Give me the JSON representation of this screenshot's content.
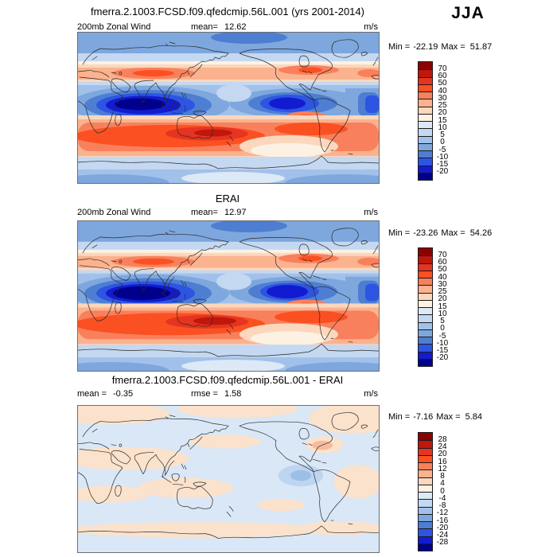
{
  "season": "JJA",
  "palette": [
    "#8b0000",
    "#c0170c",
    "#e63420",
    "#fb5022",
    "#f9805c",
    "#fbb28e",
    "#fbd7bd",
    "#fdf1e4",
    "#dde9f6",
    "#c4d8f1",
    "#a2c1ea",
    "#7ea7de",
    "#4e7ed2",
    "#2d55e2",
    "#131bd0",
    "#00008b"
  ],
  "panels": [
    {
      "title": "fmerra.2.1003.FCSD.f09.qfedcmip.56L.001 (yrs 2001-2014)",
      "sub_left": "200mb Zonal Wind",
      "stat_label": "mean=",
      "stat_value": "12.62",
      "units": "m/s",
      "min_label": "Min =",
      "min": "-22.19",
      "max_label": "Max =",
      "max": "51.87",
      "levels": [
        "70",
        "60",
        "50",
        "40",
        "30",
        "25",
        "20",
        "15",
        "10",
        "5",
        "0",
        "-5",
        "-10",
        "-15",
        "-20"
      ]
    },
    {
      "title": "ERAI",
      "sub_left": "200mb Zonal Wind",
      "stat_label": "mean=",
      "stat_value": "12.97",
      "units": "m/s",
      "min_label": "Min =",
      "min": "-23.26",
      "max_label": "Max =",
      "max": "54.26",
      "levels": [
        "70",
        "60",
        "50",
        "40",
        "30",
        "25",
        "20",
        "15",
        "10",
        "5",
        "0",
        "-5",
        "-10",
        "-15",
        "-20"
      ]
    },
    {
      "title": "fmerra.2.1003.FCSD.f09.qfedcmip.56L.001 - ERAI",
      "sub_left_label": "mean =",
      "sub_left_value": "-0.35",
      "stat_label": "rmse =",
      "stat_value": "1.58",
      "units": "m/s",
      "min_label": "Min =",
      "min": "-7.16",
      "max_label": "Max =",
      "max": "5.84",
      "levels": [
        "28",
        "24",
        "20",
        "16",
        "12",
        "8",
        "4",
        "0",
        "-4",
        "-8",
        "-12",
        "-16",
        "-20",
        "-24",
        "-28"
      ]
    }
  ],
  "chart_data": [
    {
      "type": "heatmap",
      "subtype": "filled-contour-world-map",
      "title": "fmerra.2.1003.FCSD.f09.qfedcmip.56L.001 (yrs 2001-2014)",
      "variable": "200mb Zonal Wind",
      "season": "JJA",
      "units": "m/s",
      "mean": 12.62,
      "min": -22.19,
      "max": 51.87,
      "contour_levels": [
        -20,
        -15,
        -10,
        -5,
        0,
        5,
        10,
        15,
        20,
        25,
        30,
        40,
        50,
        60,
        70
      ],
      "palette_warm_to_cool": [
        "#8b0000",
        "#c0170c",
        "#e63420",
        "#fb5022",
        "#f9805c",
        "#fbb28e",
        "#fbd7bd",
        "#fdf1e4",
        "#dde9f6",
        "#c4d8f1",
        "#a2c1ea",
        "#7ea7de",
        "#4e7ed2",
        "#2d55e2",
        "#131bd0",
        "#00008b"
      ],
      "projection": "equirectangular",
      "lon_range": [
        0,
        360
      ],
      "lat_range": [
        -90,
        90
      ],
      "legend_position": "right",
      "pattern_notes": "Strong tropical easterlies (dark blue, <-15 m/s) over Indian Ocean/SE Asia and eastern Pacific; NH subtropical westerly band ~30-45N (orange); intense SH winter jet ~30-55S (red core >50 m/s south of Australia/New Zealand); weak winds near poles."
    },
    {
      "type": "heatmap",
      "subtype": "filled-contour-world-map",
      "title": "ERAI",
      "variable": "200mb Zonal Wind",
      "season": "JJA",
      "units": "m/s",
      "mean": 12.97,
      "min": -23.26,
      "max": 54.26,
      "contour_levels": [
        -20,
        -15,
        -10,
        -5,
        0,
        5,
        10,
        15,
        20,
        25,
        30,
        40,
        50,
        60,
        70
      ],
      "projection": "equirectangular",
      "lon_range": [
        0,
        360
      ],
      "lat_range": [
        -90,
        90
      ],
      "legend_position": "right",
      "pattern_notes": "Reanalysis field nearly identical to model: tropical easterly minimum over Indian Ocean, SH jet maximum south of Australia/New Zealand."
    },
    {
      "type": "heatmap",
      "subtype": "filled-contour-world-map-difference",
      "title": "fmerra.2.1003.FCSD.f09.qfedcmip.56L.001 - ERAI",
      "variable": "200mb Zonal Wind difference",
      "season": "JJA",
      "units": "m/s",
      "mean": -0.35,
      "rmse": 1.58,
      "min": -7.16,
      "max": 5.84,
      "contour_levels": [
        -28,
        -24,
        -20,
        -16,
        -12,
        -8,
        -4,
        0,
        4,
        8,
        12,
        16,
        20,
        24,
        28
      ],
      "projection": "equirectangular",
      "lon_range": [
        0,
        360
      ],
      "lat_range": [
        -90,
        90
      ],
      "legend_position": "right",
      "pattern_notes": "Differences mostly within ±4 m/s: pale blue background with scattered pale orange patches; small negative blob in eastern tropical Pacific and small positive patch near Caribbean."
    }
  ]
}
